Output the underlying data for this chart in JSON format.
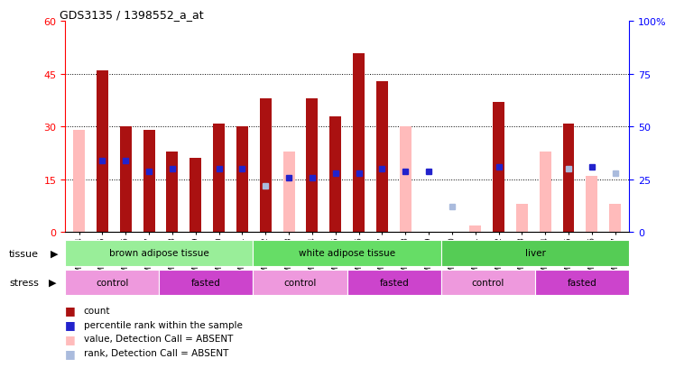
{
  "title": "GDS3135 / 1398552_a_at",
  "samples": [
    "GSM184414",
    "GSM184415",
    "GSM184416",
    "GSM184417",
    "GSM184418",
    "GSM184419",
    "GSM184420",
    "GSM184421",
    "GSM184422",
    "GSM184423",
    "GSM184424",
    "GSM184425",
    "GSM184426",
    "GSM184427",
    "GSM184428",
    "GSM184429",
    "GSM184430",
    "GSM184431",
    "GSM184432",
    "GSM184433",
    "GSM184434",
    "GSM184435",
    "GSM184436",
    "GSM184437"
  ],
  "count": [
    null,
    46,
    30,
    29,
    23,
    21,
    31,
    30,
    38,
    null,
    38,
    33,
    51,
    43,
    null,
    null,
    null,
    null,
    37,
    null,
    null,
    31,
    null,
    null
  ],
  "count_absent": [
    29,
    null,
    null,
    null,
    null,
    null,
    null,
    null,
    null,
    23,
    null,
    null,
    null,
    null,
    30,
    null,
    null,
    2,
    null,
    8,
    23,
    null,
    16,
    8
  ],
  "pct_rank": [
    null,
    34,
    34,
    29,
    30,
    null,
    30,
    30,
    null,
    26,
    26,
    28,
    28,
    30,
    29,
    29,
    null,
    null,
    31,
    null,
    null,
    null,
    31,
    null
  ],
  "pct_rank_absent": [
    null,
    null,
    null,
    null,
    null,
    null,
    null,
    null,
    22,
    null,
    null,
    null,
    null,
    null,
    null,
    null,
    12,
    null,
    null,
    null,
    null,
    30,
    null,
    28
  ],
  "ylim": [
    0,
    60
  ],
  "y2lim": [
    0,
    100
  ],
  "yticks": [
    0,
    15,
    30,
    45,
    60
  ],
  "y2ticks": [
    0,
    25,
    50,
    75,
    100
  ],
  "tissue_groups": [
    {
      "label": "brown adipose tissue",
      "start": 0,
      "end": 8,
      "color": "#99EE99"
    },
    {
      "label": "white adipose tissue",
      "start": 8,
      "end": 16,
      "color": "#66DD66"
    },
    {
      "label": "liver",
      "start": 16,
      "end": 24,
      "color": "#55CC55"
    }
  ],
  "stress_groups": [
    {
      "label": "control",
      "start": 0,
      "end": 4,
      "color": "#EE99DD"
    },
    {
      "label": "fasted",
      "start": 4,
      "end": 8,
      "color": "#CC44CC"
    },
    {
      "label": "control",
      "start": 8,
      "end": 12,
      "color": "#EE99DD"
    },
    {
      "label": "fasted",
      "start": 12,
      "end": 16,
      "color": "#CC44CC"
    },
    {
      "label": "control",
      "start": 16,
      "end": 20,
      "color": "#EE99DD"
    },
    {
      "label": "fasted",
      "start": 20,
      "end": 24,
      "color": "#CC44CC"
    }
  ],
  "bar_width": 0.5,
  "count_color": "#AA1111",
  "count_absent_color": "#FFBBBB",
  "pct_color": "#2222CC",
  "pct_absent_color": "#AABBDD",
  "plot_bg": "#FFFFFF",
  "grid_color": "#000000"
}
